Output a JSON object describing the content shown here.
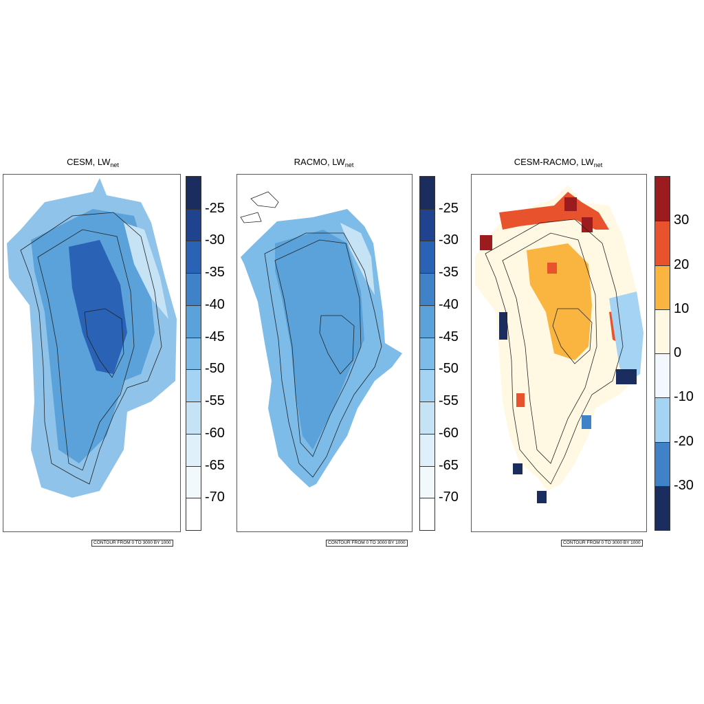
{
  "panels": [
    {
      "id": "cesm",
      "title_main": "CESM, LW",
      "title_sub": "net",
      "contour_note": "CONTOUR FROM 0 TO 3000 BY 1000"
    },
    {
      "id": "racmo",
      "title_main": "RACMO, LW",
      "title_sub": "net",
      "contour_note": "CONTOUR FROM 0 TO 3000 BY 1000"
    },
    {
      "id": "diff",
      "title_main": "CESM-RACMO, LW",
      "title_sub": "net",
      "contour_note": "CONTOUR FROM 0 TO 3000 BY 1000"
    }
  ],
  "colorbars": {
    "blue": {
      "labels": [
        "-25",
        "-30",
        "-35",
        "-40",
        "-45",
        "-50",
        "-55",
        "-60",
        "-65",
        "-70"
      ],
      "colors": [
        "#1b2c5e",
        "#1f438f",
        "#2a62b5",
        "#3f82c7",
        "#5aa2d9",
        "#7dbbe8",
        "#a4d3f3",
        "#c6e3f6",
        "#e0f0fa",
        "#f2f9fd",
        "#ffffff"
      ]
    },
    "diverging": {
      "labels": [
        "30",
        "20",
        "10",
        "0",
        "-10",
        "-20",
        "-30"
      ],
      "colors": [
        "#9b1b1e",
        "#e8532d",
        "#f9b540",
        "#fff8e3",
        "#f2f8fd",
        "#a4d3f3",
        "#3f82c7",
        "#1b2c5e"
      ]
    }
  }
}
